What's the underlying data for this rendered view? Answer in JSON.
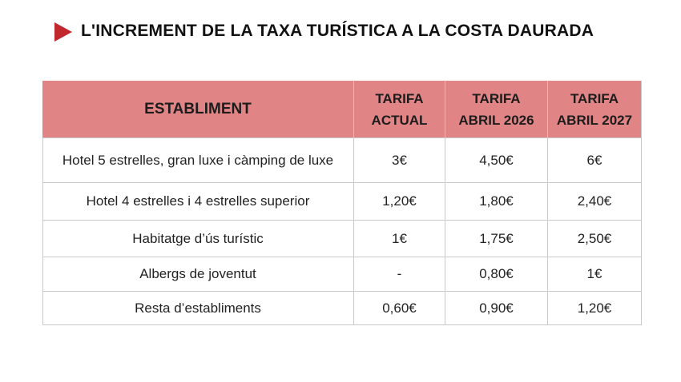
{
  "title": "L'INCREMENT DE LA TAXA TURÍSTICA A LA COSTA DAURADA",
  "table": {
    "header": [
      [
        "ESTABLIMENT"
      ],
      [
        "TARIFA",
        "ACTUAL"
      ],
      [
        "TARIFA",
        "ABRIL 2026"
      ],
      [
        "TARIFA",
        "ABRIL 2027"
      ]
    ],
    "rows": [
      [
        "Hotel 5 estrelles, gran luxe i càmping de luxe",
        "3€",
        "4,50€",
        "6€"
      ],
      [
        "Hotel 4 estrelles i 4 estrelles superior",
        "1,20€",
        "1,80€",
        "2,40€"
      ],
      [
        "Habitatge d’ús turístic",
        "1€",
        "1,75€",
        "2,50€"
      ],
      [
        "Albergs de joventut",
        "-",
        "0,80€",
        "1€"
      ],
      [
        "Resta d’establiments",
        "0,60€",
        "0,90€",
        "1,20€"
      ]
    ]
  }
}
